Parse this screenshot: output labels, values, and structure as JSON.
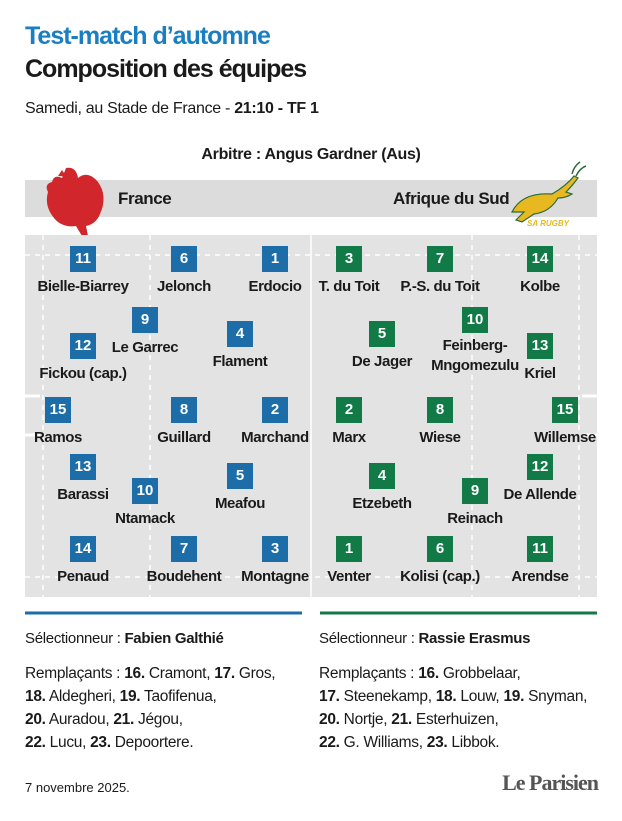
{
  "header": {
    "kicker": "Test-match d’automne",
    "title": "Composition des équipes",
    "info": "Samedi, au Stade de France - ",
    "info_bold": "21:10 - TF 1",
    "referee": "Arbitre : Angus Gardner (Aus)"
  },
  "teams": [
    {
      "name": "France",
      "players": [
        {
          "number": 11,
          "name": "Bielle-Biarrey"
        },
        {
          "number": 6,
          "name": "Jelonch"
        },
        {
          "number": 1,
          "name": "Erdocio"
        },
        {
          "number": 12,
          "name": "Fickou (cap.)"
        },
        {
          "number": 9,
          "name": "Le Garrec"
        },
        {
          "number": 4,
          "name": "Flament"
        },
        {
          "number": 15,
          "name": "Ramos"
        },
        {
          "number": 8,
          "name": "Guillard"
        },
        {
          "number": 2,
          "name": "Marchand"
        },
        {
          "number": 13,
          "name": "Barassi"
        },
        {
          "number": 10,
          "name": "Ntamack"
        },
        {
          "number": 5,
          "name": "Meafou"
        },
        {
          "number": 14,
          "name": "Penaud"
        },
        {
          "number": 7,
          "name": "Boudehent"
        },
        {
          "number": 3,
          "name": "Montagne"
        }
      ],
      "coach_label": "Sélectionneur : ",
      "coach": "Fabien Galthié",
      "subs_label": "Remplaçants : ",
      "subs": [
        {
          "number": "16.",
          "name": "Cramont,"
        },
        {
          "number": "17.",
          "name": "Gros,"
        },
        {
          "number": "18.",
          "name": "Aldegheri,"
        },
        {
          "number": "19.",
          "name": "Taofifenua,"
        },
        {
          "number": "20.",
          "name": "Auradou,"
        },
        {
          "number": "21.",
          "name": "Jégou,"
        },
        {
          "number": "22.",
          "name": "Lucu,"
        },
        {
          "number": "23.",
          "name": "Depoortere."
        }
      ]
    },
    {
      "name": "Afrique du Sud",
      "players": [
        {
          "number": 3,
          "name": "T. du Toit"
        },
        {
          "number": 7,
          "name": "P.-S. du Toit"
        },
        {
          "number": 14,
          "name": "Kolbe"
        },
        {
          "number": 5,
          "name": "De Jager"
        },
        {
          "number": 10,
          "name": "Feinberg-Mngomezulu"
        },
        {
          "number": 13,
          "name": "Kriel"
        },
        {
          "number": 2,
          "name": "Marx"
        },
        {
          "number": 8,
          "name": "Wiese"
        },
        {
          "number": 15,
          "name": "Willemse"
        },
        {
          "number": 4,
          "name": "Etzebeth"
        },
        {
          "number": 9,
          "name": "Reinach"
        },
        {
          "number": 12,
          "name": "De Allende"
        },
        {
          "number": 1,
          "name": "Venter"
        },
        {
          "number": 6,
          "name": "Kolisi (cap.)"
        },
        {
          "number": 11,
          "name": "Arendse"
        }
      ],
      "coach_label": "Sélectionneur : ",
      "coach": "Rassie Erasmus",
      "subs_label": "Remplaçants : ",
      "subs": [
        {
          "number": "16.",
          "name": "Grobbelaar,"
        },
        {
          "number": "17.",
          "name": "Steenekamp,"
        },
        {
          "number": "18.",
          "name": "Louw,"
        },
        {
          "number": "19.",
          "name": "Snyman,"
        },
        {
          "number": "20.",
          "name": "Nortje,"
        },
        {
          "number": "21.",
          "name": "Esterhuizen,"
        },
        {
          "number": "22.",
          "name": "G. Williams,"
        },
        {
          "number": "23.",
          "name": "Libbok."
        }
      ]
    }
  ],
  "sa_logo": "SA RUGBY",
  "date": "7 novembre 2025.",
  "brand": "Le Parisien"
}
